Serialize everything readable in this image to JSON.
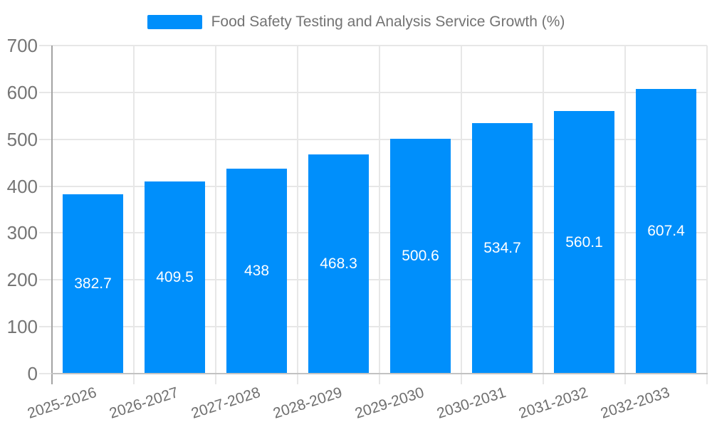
{
  "chart_data": {
    "type": "bar",
    "title": "Food Safety Testing and Analysis Service Growth (%)",
    "categories": [
      "2025-2026",
      "2026-2027",
      "2027-2028",
      "2028-2029",
      "2029-2030",
      "2030-2031",
      "2031-2032",
      "2032-2033"
    ],
    "series": [
      {
        "name": "Food Safety Testing and Analysis Service Growth (%)",
        "values": [
          382.7,
          409.5,
          438,
          468.3,
          500.6,
          534.7,
          560.1,
          607.4
        ],
        "value_labels": [
          "382.7",
          "409.5",
          "438",
          "468.3",
          "500.6",
          "534.7",
          "560.1",
          "607.4"
        ]
      }
    ],
    "xlabel": "",
    "ylabel": "",
    "ylim": [
      0,
      700
    ],
    "ytick_step": 100,
    "ytick_labels": [
      "0",
      "100",
      "200",
      "300",
      "400",
      "500",
      "600",
      "700"
    ],
    "grid": "horizontal-and-vertical",
    "legend_position": "top-center",
    "colors": {
      "bar": "#008FFB",
      "grid": "#e7e7e7",
      "y_axis_line": "#a3a3a3",
      "x_axis_line": "#c2c2c2",
      "axis_text": "#757575",
      "x_axis_text": "#6f6f6f",
      "legend_text": "#737373",
      "data_label_text": "#ffffff",
      "background": "#ffffff"
    }
  }
}
